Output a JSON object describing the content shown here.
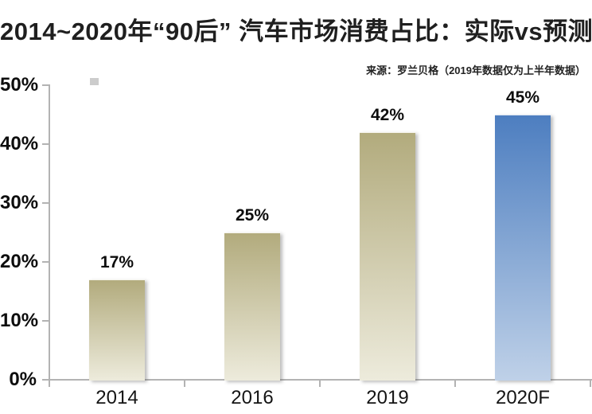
{
  "chart_data": {
    "type": "bar",
    "title": "2014~2020年“90后” 汽车市场消费占比：实际vs预测",
    "source": "来源：罗兰贝格（2019年数据仅为上半年数据）",
    "categories": [
      "2014",
      "2016",
      "2019",
      "2020F"
    ],
    "values": [
      17,
      25,
      42,
      45
    ],
    "value_labels": [
      "17%",
      "25%",
      "42%",
      "45%"
    ],
    "ylim": [
      0,
      50
    ],
    "ytick_labels": [
      "0%",
      "10%",
      "20%",
      "30%",
      "40%",
      "50%"
    ],
    "grid": false,
    "legend": "none",
    "bar_styles": [
      "tan",
      "tan",
      "tan",
      "blue"
    ],
    "colors": {
      "tan_top": "#b2ab7d",
      "tan_bottom": "#edebdc",
      "blue_top": "#4d7ec0",
      "blue_bottom": "#bfd1e8",
      "axis": "#b3b3b3",
      "text": "#0d0d0d"
    }
  }
}
